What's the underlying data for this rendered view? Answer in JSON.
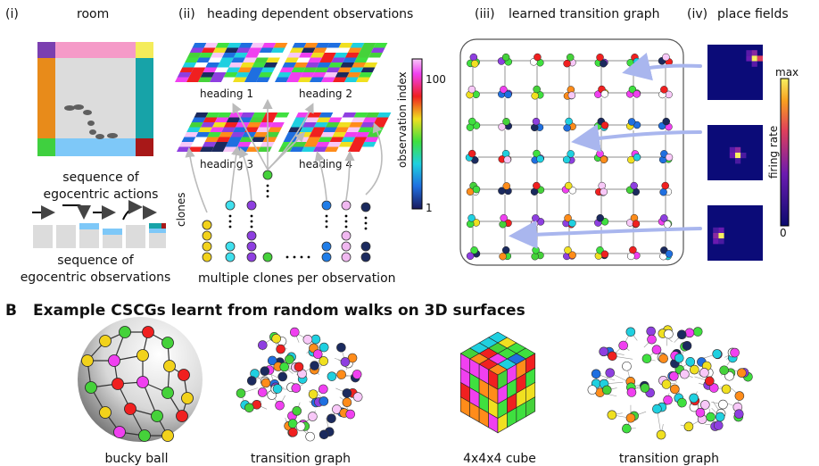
{
  "panel_a": {
    "i": {
      "label": "(i)",
      "title": "room",
      "actions_caption": "sequence of\negocentric actions",
      "obs_caption": "sequence of\negocentric observations"
    },
    "ii": {
      "label": "(ii)",
      "title": "heading dependent observations",
      "headings": [
        "heading 1",
        "heading 2",
        "heading 3",
        "heading 4"
      ],
      "clones_label": "clones",
      "multi_caption": "multiple clones per observation"
    },
    "iii": {
      "label": "(iii)",
      "title": "learned transition graph"
    },
    "iv": {
      "label": "(iv)",
      "title": "place fields",
      "colorbar_max": "max",
      "colorbar_min": "0",
      "colorbar_axis": "firing rate"
    },
    "obs_colorbar": {
      "axis": "observation index",
      "top": "100",
      "bottom": "1"
    }
  },
  "panel_b": {
    "letter": "B",
    "title": "Example CSCGs learnt from random walks on 3D surfaces",
    "captions": [
      "bucky ball",
      "transition graph",
      "4x4x4 cube",
      "transition graph"
    ]
  },
  "colors": {
    "accent_arrow": "#a9b6ee",
    "clone_yellow": "#f2d21b",
    "clone_cyan": "#3fe0ee",
    "clone_purple": "#8e3fe0",
    "clone_green": "#45d23a",
    "clone_blue": "#1f7de8",
    "clone_pink": "#f0b8f0",
    "clone_navy": "#1b2a5e"
  }
}
